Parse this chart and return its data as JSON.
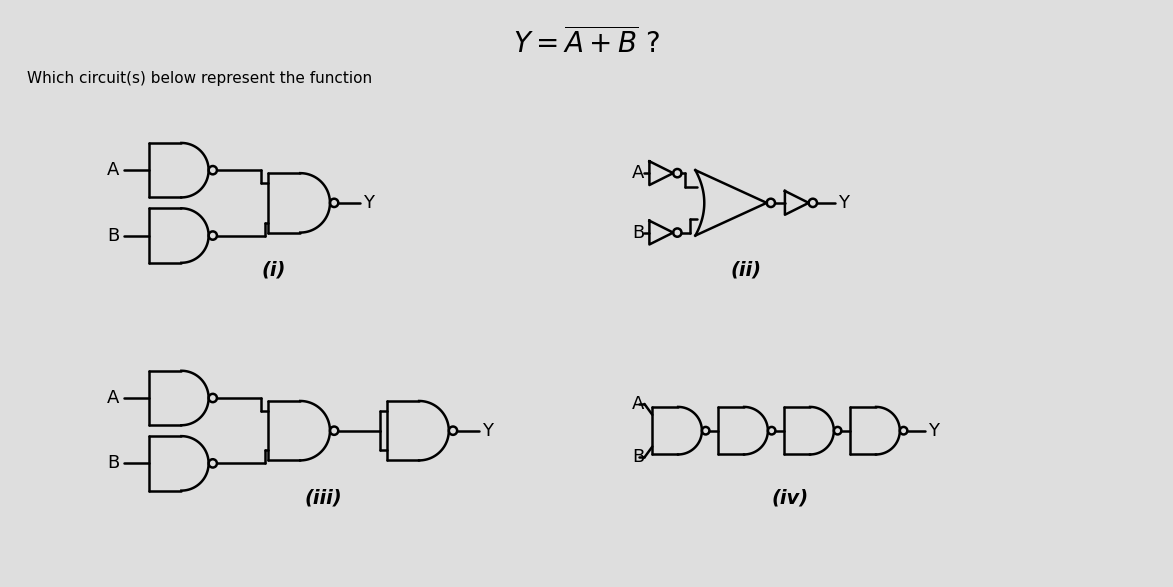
{
  "bg_color": "#dedede",
  "question_text": "Which circuit(s) below represent the function",
  "labels": [
    "(i)",
    "(ii)",
    "(iii)",
    "(iv)"
  ]
}
